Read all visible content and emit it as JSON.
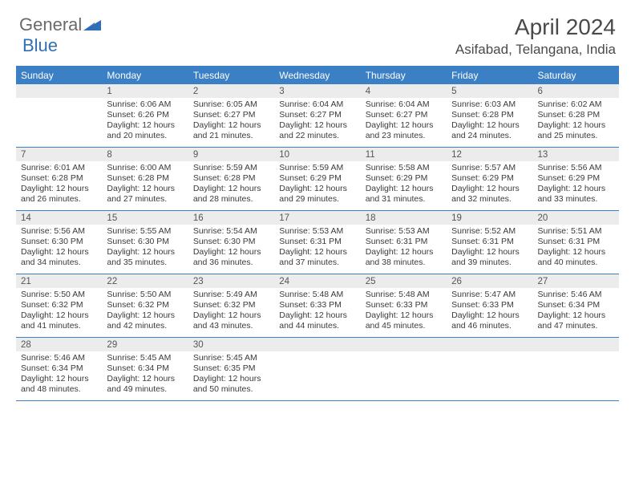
{
  "logo": {
    "text1": "General",
    "text2": "Blue",
    "color_gray": "#6a6a6a",
    "color_blue": "#2f6fb5"
  },
  "header": {
    "month_title": "April 2024",
    "location": "Asifabad, Telangana, India"
  },
  "colors": {
    "header_bg": "#3b7fc4",
    "grid_line": "#3b7fc4",
    "daynum_bg": "#ececec",
    "text": "#3a3a3a"
  },
  "day_names": [
    "Sunday",
    "Monday",
    "Tuesday",
    "Wednesday",
    "Thursday",
    "Friday",
    "Saturday"
  ],
  "weeks": [
    [
      {
        "day": "",
        "sunrise": "",
        "sunset": "",
        "daylight": ""
      },
      {
        "day": "1",
        "sunrise": "Sunrise: 6:06 AM",
        "sunset": "Sunset: 6:26 PM",
        "daylight": "Daylight: 12 hours and 20 minutes."
      },
      {
        "day": "2",
        "sunrise": "Sunrise: 6:05 AM",
        "sunset": "Sunset: 6:27 PM",
        "daylight": "Daylight: 12 hours and 21 minutes."
      },
      {
        "day": "3",
        "sunrise": "Sunrise: 6:04 AM",
        "sunset": "Sunset: 6:27 PM",
        "daylight": "Daylight: 12 hours and 22 minutes."
      },
      {
        "day": "4",
        "sunrise": "Sunrise: 6:04 AM",
        "sunset": "Sunset: 6:27 PM",
        "daylight": "Daylight: 12 hours and 23 minutes."
      },
      {
        "day": "5",
        "sunrise": "Sunrise: 6:03 AM",
        "sunset": "Sunset: 6:28 PM",
        "daylight": "Daylight: 12 hours and 24 minutes."
      },
      {
        "day": "6",
        "sunrise": "Sunrise: 6:02 AM",
        "sunset": "Sunset: 6:28 PM",
        "daylight": "Daylight: 12 hours and 25 minutes."
      }
    ],
    [
      {
        "day": "7",
        "sunrise": "Sunrise: 6:01 AM",
        "sunset": "Sunset: 6:28 PM",
        "daylight": "Daylight: 12 hours and 26 minutes."
      },
      {
        "day": "8",
        "sunrise": "Sunrise: 6:00 AM",
        "sunset": "Sunset: 6:28 PM",
        "daylight": "Daylight: 12 hours and 27 minutes."
      },
      {
        "day": "9",
        "sunrise": "Sunrise: 5:59 AM",
        "sunset": "Sunset: 6:28 PM",
        "daylight": "Daylight: 12 hours and 28 minutes."
      },
      {
        "day": "10",
        "sunrise": "Sunrise: 5:59 AM",
        "sunset": "Sunset: 6:29 PM",
        "daylight": "Daylight: 12 hours and 29 minutes."
      },
      {
        "day": "11",
        "sunrise": "Sunrise: 5:58 AM",
        "sunset": "Sunset: 6:29 PM",
        "daylight": "Daylight: 12 hours and 31 minutes."
      },
      {
        "day": "12",
        "sunrise": "Sunrise: 5:57 AM",
        "sunset": "Sunset: 6:29 PM",
        "daylight": "Daylight: 12 hours and 32 minutes."
      },
      {
        "day": "13",
        "sunrise": "Sunrise: 5:56 AM",
        "sunset": "Sunset: 6:29 PM",
        "daylight": "Daylight: 12 hours and 33 minutes."
      }
    ],
    [
      {
        "day": "14",
        "sunrise": "Sunrise: 5:56 AM",
        "sunset": "Sunset: 6:30 PM",
        "daylight": "Daylight: 12 hours and 34 minutes."
      },
      {
        "day": "15",
        "sunrise": "Sunrise: 5:55 AM",
        "sunset": "Sunset: 6:30 PM",
        "daylight": "Daylight: 12 hours and 35 minutes."
      },
      {
        "day": "16",
        "sunrise": "Sunrise: 5:54 AM",
        "sunset": "Sunset: 6:30 PM",
        "daylight": "Daylight: 12 hours and 36 minutes."
      },
      {
        "day": "17",
        "sunrise": "Sunrise: 5:53 AM",
        "sunset": "Sunset: 6:31 PM",
        "daylight": "Daylight: 12 hours and 37 minutes."
      },
      {
        "day": "18",
        "sunrise": "Sunrise: 5:53 AM",
        "sunset": "Sunset: 6:31 PM",
        "daylight": "Daylight: 12 hours and 38 minutes."
      },
      {
        "day": "19",
        "sunrise": "Sunrise: 5:52 AM",
        "sunset": "Sunset: 6:31 PM",
        "daylight": "Daylight: 12 hours and 39 minutes."
      },
      {
        "day": "20",
        "sunrise": "Sunrise: 5:51 AM",
        "sunset": "Sunset: 6:31 PM",
        "daylight": "Daylight: 12 hours and 40 minutes."
      }
    ],
    [
      {
        "day": "21",
        "sunrise": "Sunrise: 5:50 AM",
        "sunset": "Sunset: 6:32 PM",
        "daylight": "Daylight: 12 hours and 41 minutes."
      },
      {
        "day": "22",
        "sunrise": "Sunrise: 5:50 AM",
        "sunset": "Sunset: 6:32 PM",
        "daylight": "Daylight: 12 hours and 42 minutes."
      },
      {
        "day": "23",
        "sunrise": "Sunrise: 5:49 AM",
        "sunset": "Sunset: 6:32 PM",
        "daylight": "Daylight: 12 hours and 43 minutes."
      },
      {
        "day": "24",
        "sunrise": "Sunrise: 5:48 AM",
        "sunset": "Sunset: 6:33 PM",
        "daylight": "Daylight: 12 hours and 44 minutes."
      },
      {
        "day": "25",
        "sunrise": "Sunrise: 5:48 AM",
        "sunset": "Sunset: 6:33 PM",
        "daylight": "Daylight: 12 hours and 45 minutes."
      },
      {
        "day": "26",
        "sunrise": "Sunrise: 5:47 AM",
        "sunset": "Sunset: 6:33 PM",
        "daylight": "Daylight: 12 hours and 46 minutes."
      },
      {
        "day": "27",
        "sunrise": "Sunrise: 5:46 AM",
        "sunset": "Sunset: 6:34 PM",
        "daylight": "Daylight: 12 hours and 47 minutes."
      }
    ],
    [
      {
        "day": "28",
        "sunrise": "Sunrise: 5:46 AM",
        "sunset": "Sunset: 6:34 PM",
        "daylight": "Daylight: 12 hours and 48 minutes."
      },
      {
        "day": "29",
        "sunrise": "Sunrise: 5:45 AM",
        "sunset": "Sunset: 6:34 PM",
        "daylight": "Daylight: 12 hours and 49 minutes."
      },
      {
        "day": "30",
        "sunrise": "Sunrise: 5:45 AM",
        "sunset": "Sunset: 6:35 PM",
        "daylight": "Daylight: 12 hours and 50 minutes."
      },
      {
        "day": "",
        "sunrise": "",
        "sunset": "",
        "daylight": ""
      },
      {
        "day": "",
        "sunrise": "",
        "sunset": "",
        "daylight": ""
      },
      {
        "day": "",
        "sunrise": "",
        "sunset": "",
        "daylight": ""
      },
      {
        "day": "",
        "sunrise": "",
        "sunset": "",
        "daylight": ""
      }
    ]
  ]
}
